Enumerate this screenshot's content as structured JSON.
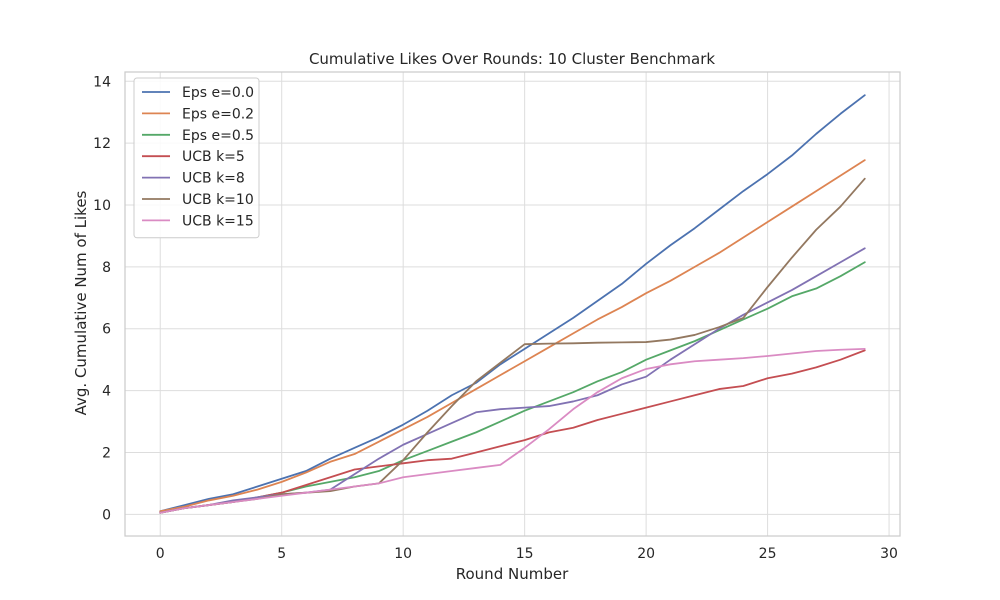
{
  "chart_data": {
    "type": "line",
    "title": "Cumulative Likes Over Rounds: 10 Cluster Benchmark",
    "xlabel": "Round Number",
    "ylabel": "Avg. Cumulative Num of Likes",
    "xlim": [
      -1.45,
      30.45
    ],
    "ylim": [
      -0.7,
      14.3
    ],
    "xticks": [
      0,
      5,
      10,
      15,
      20,
      25,
      30
    ],
    "yticks": [
      0,
      2,
      4,
      6,
      8,
      10,
      12,
      14
    ],
    "grid": true,
    "legend_position": "top-left",
    "x": [
      0,
      1,
      2,
      3,
      4,
      5,
      6,
      7,
      8,
      9,
      10,
      11,
      12,
      13,
      14,
      15,
      16,
      17,
      18,
      19,
      20,
      21,
      22,
      23,
      24,
      25,
      26,
      27,
      28,
      29
    ],
    "series": [
      {
        "name": "Eps e=0.0",
        "color": "#4c72b0",
        "values": [
          0.1,
          0.3,
          0.5,
          0.65,
          0.9,
          1.15,
          1.4,
          1.8,
          2.15,
          2.5,
          2.9,
          3.35,
          3.85,
          4.25,
          4.85,
          5.35,
          5.85,
          6.35,
          6.9,
          7.45,
          8.1,
          8.7,
          9.25,
          9.85,
          10.45,
          11.0,
          11.6,
          12.3,
          12.95,
          13.55
        ]
      },
      {
        "name": "Eps e=0.2",
        "color": "#dd8452",
        "values": [
          0.1,
          0.25,
          0.45,
          0.6,
          0.8,
          1.05,
          1.35,
          1.7,
          1.95,
          2.35,
          2.75,
          3.15,
          3.6,
          4.05,
          4.5,
          4.95,
          5.4,
          5.85,
          6.3,
          6.7,
          7.15,
          7.55,
          8.0,
          8.45,
          8.95,
          9.45,
          9.95,
          10.45,
          10.95,
          11.45
        ]
      },
      {
        "name": "Eps e=0.5",
        "color": "#55a868",
        "values": [
          0.05,
          0.2,
          0.3,
          0.4,
          0.55,
          0.7,
          0.9,
          1.05,
          1.2,
          1.4,
          1.75,
          2.05,
          2.35,
          2.65,
          3.0,
          3.35,
          3.65,
          3.95,
          4.3,
          4.6,
          5.0,
          5.3,
          5.6,
          5.95,
          6.3,
          6.65,
          7.05,
          7.3,
          7.7,
          8.15
        ]
      },
      {
        "name": "UCB k=5",
        "color": "#c44e52",
        "values": [
          0.05,
          0.2,
          0.3,
          0.4,
          0.55,
          0.7,
          0.95,
          1.2,
          1.45,
          1.55,
          1.65,
          1.75,
          1.8,
          2.0,
          2.2,
          2.4,
          2.65,
          2.8,
          3.05,
          3.25,
          3.45,
          3.65,
          3.85,
          4.05,
          4.15,
          4.4,
          4.55,
          4.75,
          5.0,
          5.3
        ]
      },
      {
        "name": "UCB k=8",
        "color": "#8172b3",
        "values": [
          0.05,
          0.2,
          0.3,
          0.45,
          0.55,
          0.65,
          0.7,
          0.8,
          1.3,
          1.8,
          2.25,
          2.6,
          2.95,
          3.3,
          3.4,
          3.45,
          3.5,
          3.65,
          3.85,
          4.2,
          4.45,
          5.0,
          5.5,
          6.0,
          6.45,
          6.85,
          7.25,
          7.7,
          8.15,
          8.6
        ]
      },
      {
        "name": "UCB k=10",
        "color": "#937860",
        "values": [
          0.05,
          0.2,
          0.3,
          0.4,
          0.5,
          0.65,
          0.7,
          0.75,
          0.9,
          1.0,
          1.75,
          2.65,
          3.5,
          4.3,
          4.9,
          5.5,
          5.52,
          5.53,
          5.55,
          5.56,
          5.57,
          5.65,
          5.8,
          6.05,
          6.35,
          7.35,
          8.3,
          9.2,
          9.95,
          10.85
        ]
      },
      {
        "name": "UCB k=15",
        "color": "#da8bc3",
        "values": [
          0.05,
          0.2,
          0.3,
          0.4,
          0.5,
          0.6,
          0.7,
          0.8,
          0.9,
          1.0,
          1.2,
          1.3,
          1.4,
          1.5,
          1.6,
          2.15,
          2.75,
          3.4,
          3.95,
          4.4,
          4.7,
          4.85,
          4.95,
          5.0,
          5.05,
          5.12,
          5.2,
          5.28,
          5.32,
          5.35
        ]
      }
    ]
  }
}
